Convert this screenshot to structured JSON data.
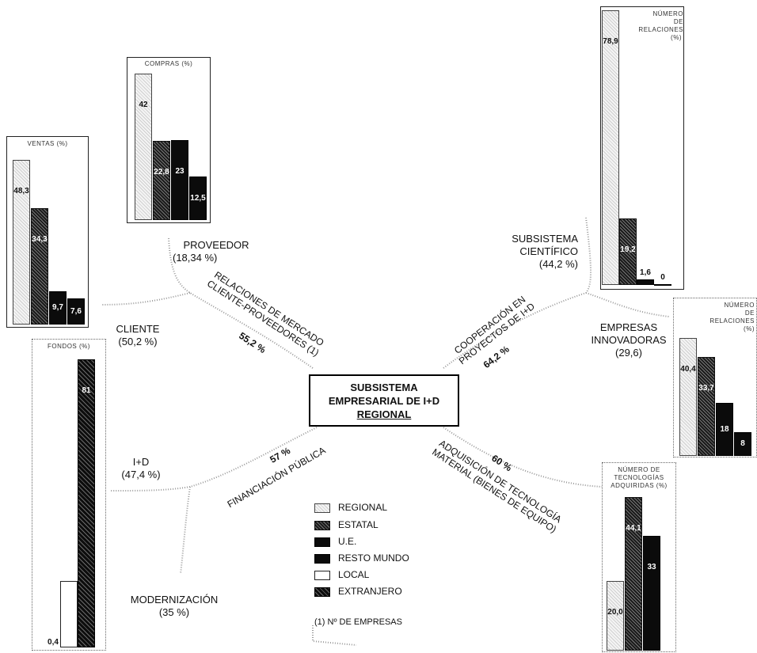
{
  "center": {
    "lines": [
      "SUBSISTEMA",
      "EMPRESARIAL DE I+D",
      "REGIONAL"
    ]
  },
  "nodes": {
    "proveedor": {
      "name": "PROVEEDOR",
      "pct": "(18,34 %)"
    },
    "cliente": {
      "name": "CLIENTE",
      "pct": "(50,2 %)"
    },
    "id": {
      "name": "I+D",
      "pct": "(47,4 %)"
    },
    "modernizacion": {
      "name": "MODERNIZACIÓN",
      "pct": "(35 %)"
    },
    "cientifico": {
      "name1": "SUBSISTEMA",
      "name2": "CIENTÍFICO",
      "pct": "(44,2 %)"
    },
    "innovadoras": {
      "name1": "EMPRESAS",
      "name2": "INNOVADORAS",
      "pct": "(29,6)"
    }
  },
  "links": {
    "mercado": {
      "line1": "RELACIONES DE MERCADO",
      "line2": "CLIENTE-PROVEEDORES (1)",
      "pct": "55,2 %"
    },
    "cooperacion": {
      "line1": "COOPERACIÓN EN",
      "line2": "PROYECTOS DE I+D",
      "pct": "64,2 %"
    },
    "financiacion": {
      "line1": "FINANCIACIÓN PÚBLICA",
      "pct": "57 %"
    },
    "adquisicion": {
      "line1": "ADQUISICIÓN DE TECNOLOGÍA",
      "line2": "MATERIAL (BIENES DE EQUIPO)",
      "pct": "60 %"
    }
  },
  "legend": {
    "items": [
      "REGIONAL",
      "ESTATAL",
      "U.E.",
      "RESTO MUNDO",
      "LOCAL",
      "EXTRANJERO"
    ],
    "note": "(1) Nº DE EMPRESAS"
  },
  "charts": {
    "compras": {
      "title": "COMPRAS (%)",
      "labels": [
        "42",
        "22,8",
        "23",
        "12,5"
      ],
      "values": [
        42,
        22.8,
        23,
        12.5
      ]
    },
    "ventas": {
      "title": "VENTAS (%)",
      "labels": [
        "48,3",
        "34,3",
        "9,7",
        "7,6"
      ],
      "values": [
        48.3,
        34.3,
        9.7,
        7.6
      ]
    },
    "fondos": {
      "title": "FONDOS (%)",
      "labels": [
        "0,4",
        "81"
      ],
      "values": [
        0.4,
        81
      ]
    },
    "relaciones_cientifico": {
      "title_lines": [
        "NÚMERO",
        "DE",
        "RELACIONES",
        "(%)"
      ],
      "labels": [
        "78,9",
        "19,2",
        "1,6",
        "0"
      ],
      "values": [
        78.9,
        19.2,
        1.6,
        0
      ]
    },
    "relaciones_innovadoras": {
      "title_lines": [
        "NÚMERO",
        "DE",
        "RELACIONES",
        "(%)"
      ],
      "labels": [
        "40,4",
        "33,7",
        "18",
        "8"
      ],
      "values": [
        40.4,
        33.7,
        18,
        8
      ]
    },
    "tecnologias": {
      "title_lines": [
        "NÚMERO DE",
        "TECNOLOGÍAS",
        "ADQUIRIDAS (%)"
      ],
      "labels": [
        "20,0",
        "44,1",
        "33"
      ],
      "values": [
        20,
        44.1,
        33
      ]
    }
  }
}
